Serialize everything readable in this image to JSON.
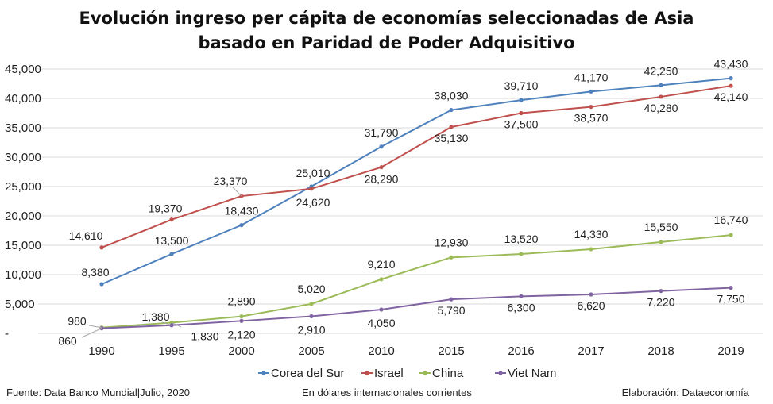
{
  "title": {
    "line1": "Evolución ingreso per cápita de economías seleccionadas de Asia",
    "line2": "basado en Paridad de Poder Adquisitivo"
  },
  "footer": {
    "source": "Fuente: Data Banco Mundial|Julio, 2020",
    "units": "En dólares internacionales corrientes",
    "credit": "Elaboración: Dataeconomía"
  },
  "chart_data": {
    "type": "line",
    "categories": [
      "1990",
      "1995",
      "2000",
      "2005",
      "2010",
      "2015",
      "2016",
      "2017",
      "2018",
      "2019"
    ],
    "ylim": [
      0,
      45000
    ],
    "yticks": [
      0,
      5000,
      10000,
      15000,
      20000,
      25000,
      30000,
      35000,
      40000,
      45000
    ],
    "ytick_labels": [
      "-",
      "5,000",
      "10,000",
      "15,000",
      "20,000",
      "25,000",
      "30,000",
      "35,000",
      "40,000",
      "45,000"
    ],
    "grid": true,
    "legend_position": "bottom",
    "series": [
      {
        "name": "Corea del Sur",
        "color": "#4f81bd",
        "values": [
          8380,
          13500,
          18430,
          25010,
          31790,
          38030,
          39710,
          41170,
          42250,
          43430
        ],
        "labels": [
          "8,380",
          "13,500",
          "18,430",
          "25,010",
          "31,790",
          "38,030",
          "39,710",
          "41,170",
          "42,250",
          "43,430"
        ]
      },
      {
        "name": "Israel",
        "color": "#c0504d",
        "values": [
          14610,
          19370,
          23370,
          24620,
          28290,
          35130,
          37500,
          38570,
          40280,
          42140
        ],
        "labels": [
          "14,610",
          "19,370",
          "23,370",
          "24,620",
          "28,290",
          "35,130",
          "37,500",
          "38,570",
          "40,280",
          "42,140"
        ]
      },
      {
        "name": "China",
        "color": "#9bbb59",
        "values": [
          980,
          1830,
          2890,
          5020,
          9210,
          12930,
          13520,
          14330,
          15550,
          16740
        ],
        "labels": [
          "980",
          "1,830",
          "2,890",
          "5,020",
          "9,210",
          "12,930",
          "13,520",
          "14,330",
          "15,550",
          "16,740"
        ]
      },
      {
        "name": "Viet Nam",
        "color": "#8064a2",
        "values": [
          860,
          1380,
          2120,
          2910,
          4050,
          5790,
          6300,
          6620,
          7220,
          7750
        ],
        "labels": [
          "860",
          "1,380",
          "2,120",
          "2,910",
          "4,050",
          "5,790",
          "6,300",
          "6,620",
          "7,220",
          "7,750"
        ]
      }
    ]
  }
}
